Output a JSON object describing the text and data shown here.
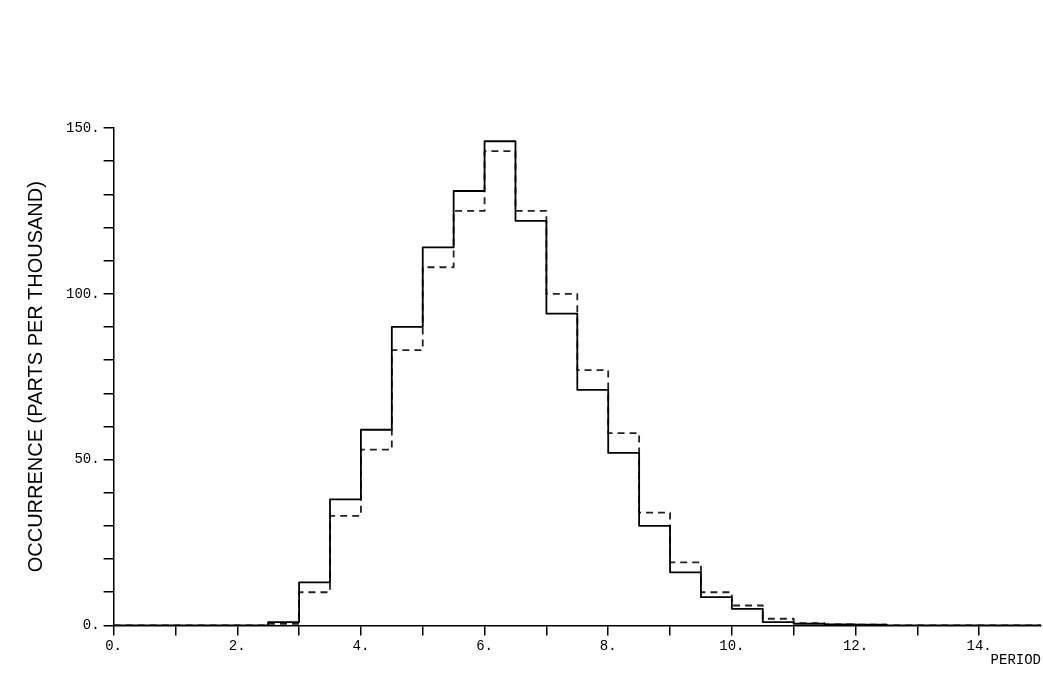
{
  "chart_data": {
    "type": "histogram",
    "xlabel": "PERIOD",
    "ylabel": "OCCURRENCE (PARTS PER THOUSAND)",
    "bins": [
      0,
      0.5,
      1,
      1.5,
      2,
      2.5,
      3,
      3.5,
      4,
      4.5,
      5,
      5.5,
      6,
      6.5,
      7,
      7.5,
      8,
      8.5,
      9,
      9.5,
      10,
      10.5,
      11,
      11.5,
      12,
      12.5,
      13,
      13.5,
      14,
      14.5,
      15
    ],
    "series": [
      {
        "color": "#000000",
        "line_style": "solid",
        "values": [
          0,
          0,
          0,
          0,
          0,
          1,
          13,
          38,
          59,
          90,
          114,
          131,
          146,
          122,
          94,
          71,
          52,
          30,
          16,
          8.5,
          5,
          1,
          0.5,
          0.3,
          0.2,
          0,
          0,
          0,
          0,
          0
        ]
      },
      {
        "color": "#222222",
        "line_style": "dashed",
        "values": [
          0,
          0,
          0,
          0,
          0,
          0.5,
          10,
          33,
          53,
          83,
          108,
          125,
          143,
          125,
          100,
          77,
          58,
          34,
          19,
          10,
          6,
          2,
          0.7,
          0.3,
          0.2,
          0,
          0,
          0,
          0,
          0
        ]
      }
    ],
    "xlim": [
      0,
      15
    ],
    "ylim": [
      0,
      150
    ],
    "xticks": [
      {
        "value": 0,
        "label": "0."
      },
      {
        "value": 1,
        "label": null
      },
      {
        "value": 2,
        "label": "2."
      },
      {
        "value": 3,
        "label": null
      },
      {
        "value": 4,
        "label": "4."
      },
      {
        "value": 5,
        "label": null
      },
      {
        "value": 6,
        "label": "6."
      },
      {
        "value": 7,
        "label": null
      },
      {
        "value": 8,
        "label": "8."
      },
      {
        "value": 9,
        "label": null
      },
      {
        "value": 10,
        "label": "10."
      },
      {
        "value": 11,
        "label": null
      },
      {
        "value": 12,
        "label": "12."
      },
      {
        "value": 13,
        "label": null
      },
      {
        "value": 14,
        "label": "14."
      }
    ],
    "yticks": [
      {
        "value": 0,
        "label": "0."
      },
      {
        "value": 10,
        "label": null
      },
      {
        "value": 20,
        "label": null
      },
      {
        "value": 30,
        "label": null
      },
      {
        "value": 40,
        "label": null
      },
      {
        "value": 50,
        "label": "50."
      },
      {
        "value": 60,
        "label": null
      },
      {
        "value": 70,
        "label": null
      },
      {
        "value": 80,
        "label": null
      },
      {
        "value": 90,
        "label": null
      },
      {
        "value": 100,
        "label": "100."
      },
      {
        "value": 110,
        "label": null
      },
      {
        "value": 120,
        "label": null
      },
      {
        "value": 130,
        "label": null
      },
      {
        "value": 140,
        "label": null
      },
      {
        "value": 150,
        "label": "150."
      }
    ],
    "grid": false,
    "legend": false
  }
}
